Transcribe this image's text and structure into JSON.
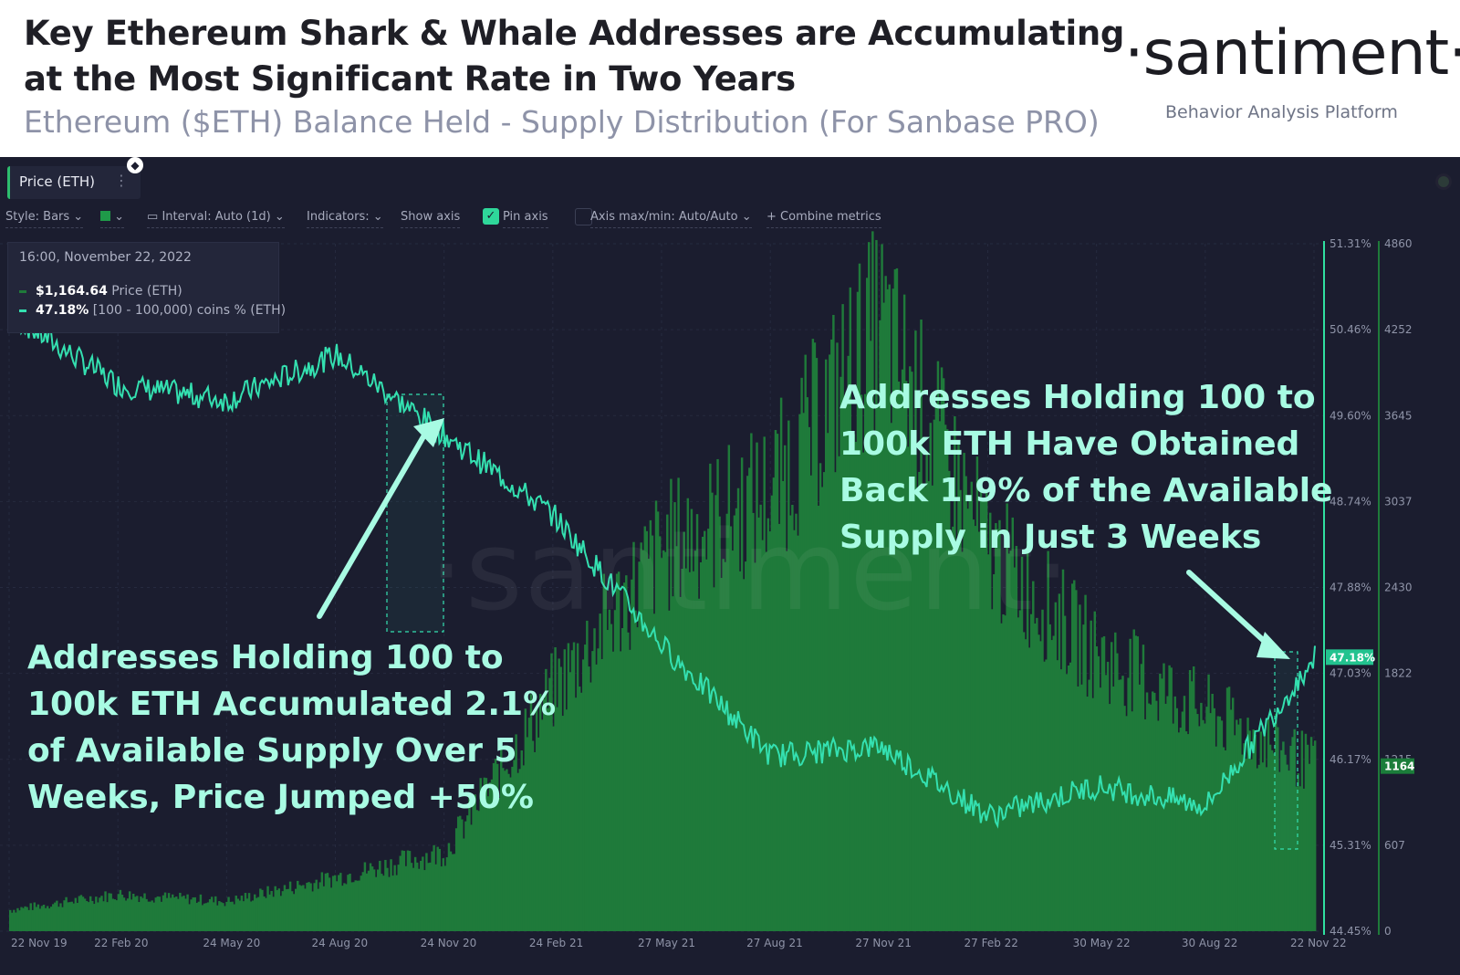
{
  "header": {
    "title_line1": "Key Ethereum Shark & Whale Addresses are Accumulating",
    "title_line2": "at the Most Significant Rate in Two Years",
    "subtitle": "Ethereum ($ETH) Balance Held - Supply Distribution (For Sanbase PRO)",
    "logo": "·santiment·",
    "logo_tagline": "Behavior Analysis Platform"
  },
  "panel": {
    "tab_label": "Price (ETH)",
    "tab_menu": "⋮",
    "toolbar": {
      "style": "Style: Bars",
      "interval": "Interval: Auto (1d)",
      "indicators": "Indicators:",
      "show_axis": "Show axis",
      "pin_axis": "Pin axis",
      "axis_maxmin": "Axis max/min: Auto/Auto",
      "combine": "Combine metrics"
    },
    "legend": {
      "date": "16:00, November 22, 2022",
      "price_value": "$1,164.64",
      "price_label": "Price (ETH)",
      "supply_value": "47.18%",
      "supply_label": "[100 - 100,000) coins % (ETH)"
    },
    "watermark": "·santiment·"
  },
  "annotations": {
    "left": [
      "Addresses Holding 100 to",
      "100k ETH Accumulated 2.1%",
      "of Available Supply Over 5",
      "Weeks, Price Jumped +50%"
    ],
    "right": [
      "Addresses Holding 100 to",
      "100k ETH Have Obtained",
      "Back 1.9% of the Available",
      "Supply in Just 3 Weeks"
    ]
  },
  "colors": {
    "background": "#1b1d2f",
    "price_bars": "#1f7a3a",
    "supply_line": "#34e0b0",
    "annotation_text": "#a8fbe3"
  },
  "chart_data": {
    "type": "bar",
    "title": "",
    "x_ticks": [
      "22 Nov 19",
      "22 Feb 20",
      "24 May 20",
      "24 Aug 20",
      "24 Nov 20",
      "24 Feb 21",
      "27 May 21",
      "27 Aug 21",
      "27 Nov 21",
      "27 Feb 22",
      "30 May 22",
      "30 Aug 22",
      "22 Nov 22"
    ],
    "y_left_ticks": [
      "51.31%",
      "50.46%",
      "49.60%",
      "48.74%",
      "47.88%",
      "47.03%",
      "46.17%",
      "45.31%",
      "44.45%"
    ],
    "y_left_range": [
      44.45,
      51.31
    ],
    "y_right_ticks": [
      "4860",
      "4252",
      "3645",
      "3037",
      "2430",
      "1822",
      "1215",
      "607",
      "0"
    ],
    "y_right_range": [
      0,
      4860
    ],
    "last_values": {
      "supply_pct": "47.18%",
      "price": "1164"
    },
    "series": [
      {
        "name": "Price (ETH)",
        "kind": "bars",
        "axis": "right",
        "x": [
          "22 Nov 19",
          "22 Feb 20",
          "24 May 20",
          "24 Aug 20",
          "24 Nov 20",
          "24 Feb 21",
          "27 May 21",
          "27 Aug 21",
          "27 Nov 21",
          "27 Feb 22",
          "30 May 22",
          "30 Aug 22",
          "22 Nov 22"
        ],
        "values": [
          150,
          260,
          210,
          380,
          560,
          1700,
          2700,
          3100,
          4300,
          2700,
          1950,
          1550,
          1165
        ]
      },
      {
        "name": "[100 - 100,000) coins % (ETH)",
        "kind": "line",
        "axis": "left",
        "x": [
          "22 Nov 19",
          "22 Feb 20",
          "24 May 20",
          "24 Aug 20",
          "24 Nov 20",
          "24 Feb 21",
          "27 May 21",
          "27 Aug 21",
          "27 Nov 21",
          "27 Feb 22",
          "30 May 22",
          "30 Aug 22",
          "22 Nov 22"
        ],
        "values": [
          50.6,
          49.9,
          49.75,
          50.2,
          49.4,
          48.6,
          47.3,
          46.2,
          46.3,
          45.6,
          45.9,
          45.7,
          47.18
        ]
      }
    ],
    "highlight_windows": [
      {
        "from": "20 Oct 20",
        "to": "24 Nov 20"
      },
      {
        "from": "1 Nov 22",
        "to": "22 Nov 22"
      }
    ]
  }
}
